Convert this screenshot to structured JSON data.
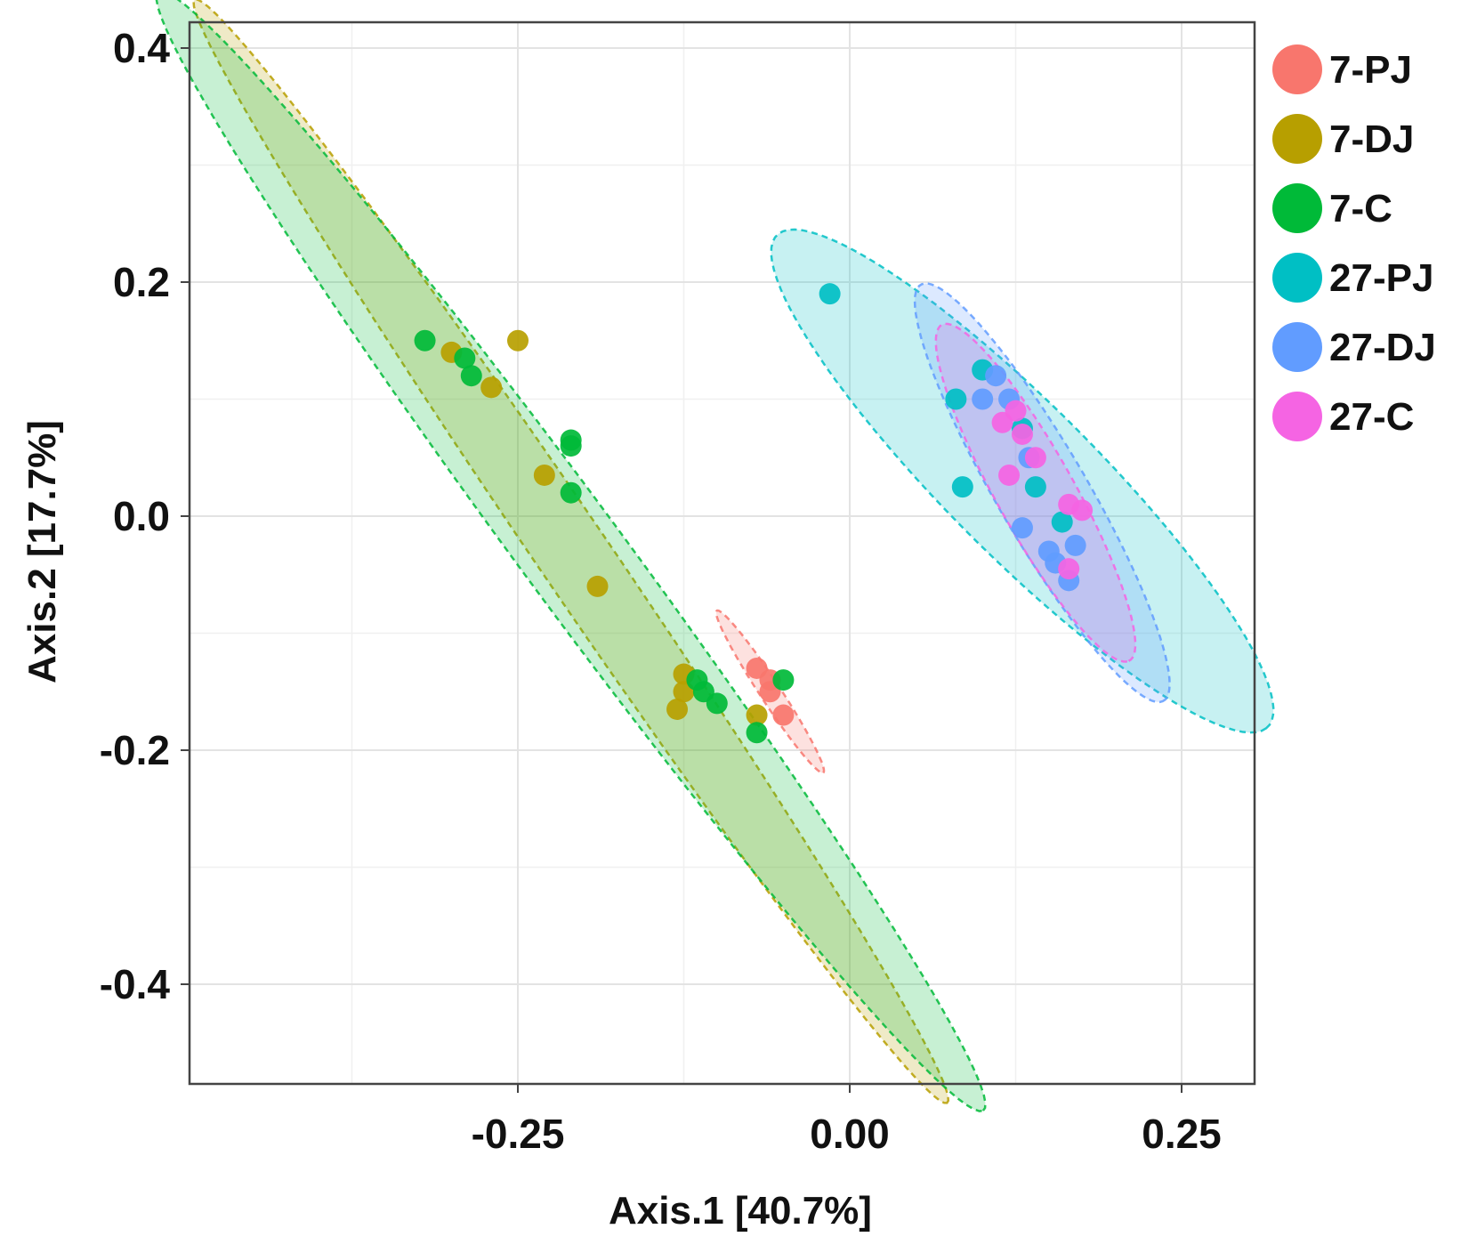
{
  "chart_data": {
    "type": "scatter",
    "title": "",
    "xlabel": "Axis.1 [40.7%]",
    "ylabel": "Axis.2 [17.7%]",
    "xlim": [
      -0.5,
      0.3
    ],
    "ylim": [
      -0.48,
      0.42
    ],
    "xticks": [
      -0.25,
      0.0,
      0.25
    ],
    "xtick_labels": [
      "-0.25",
      "0.00",
      "0.25"
    ],
    "yticks": [
      -0.4,
      -0.2,
      0.0,
      0.2,
      0.4
    ],
    "ytick_labels": [
      "-0.4",
      "-0.2",
      "0.0",
      "0.2",
      "0.4"
    ],
    "grid": true,
    "legend_position": "right",
    "series": [
      {
        "name": "7-PJ",
        "color": "#F8766D",
        "points": [
          [
            -0.07,
            -0.13
          ],
          [
            -0.06,
            -0.15
          ],
          [
            -0.05,
            -0.17
          ],
          [
            -0.06,
            -0.14
          ]
        ],
        "ellipse": {
          "cx": -0.06,
          "cy": -0.15,
          "semi_major": 0.08,
          "semi_minor": 0.008,
          "angle_deg": -60
        }
      },
      {
        "name": "7-DJ",
        "color": "#B79F00",
        "points": [
          [
            -0.3,
            0.14
          ],
          [
            -0.27,
            0.11
          ],
          [
            -0.25,
            0.15
          ],
          [
            -0.23,
            0.035
          ],
          [
            -0.19,
            -0.06
          ],
          [
            -0.125,
            -0.135
          ],
          [
            -0.13,
            -0.165
          ],
          [
            -0.125,
            -0.15
          ],
          [
            -0.07,
            -0.17
          ]
        ],
        "ellipse": {
          "cx": -0.21,
          "cy": -0.03,
          "semi_major": 0.55,
          "semi_minor": 0.028,
          "angle_deg": -59
        }
      },
      {
        "name": "7-C",
        "color": "#00BA38",
        "points": [
          [
            -0.32,
            0.15
          ],
          [
            -0.29,
            0.135
          ],
          [
            -0.285,
            0.12
          ],
          [
            -0.21,
            0.065
          ],
          [
            -0.21,
            0.06
          ],
          [
            -0.21,
            0.02
          ],
          [
            -0.11,
            -0.15
          ],
          [
            -0.1,
            -0.16
          ],
          [
            -0.115,
            -0.14
          ],
          [
            -0.07,
            -0.185
          ],
          [
            -0.05,
            -0.14
          ]
        ],
        "ellipse": {
          "cx": -0.21,
          "cy": -0.03,
          "semi_major": 0.57,
          "semi_minor": 0.04,
          "angle_deg": -57
        }
      },
      {
        "name": "27-PJ",
        "color": "#00BFC4",
        "points": [
          [
            -0.015,
            0.19
          ],
          [
            0.08,
            0.1
          ],
          [
            0.085,
            0.025
          ],
          [
            0.1,
            0.125
          ],
          [
            0.13,
            0.075
          ],
          [
            0.14,
            0.025
          ],
          [
            0.16,
            -0.005
          ]
        ],
        "ellipse": {
          "cx": 0.13,
          "cy": 0.03,
          "semi_major": 0.28,
          "semi_minor": 0.06,
          "angle_deg": -49
        }
      },
      {
        "name": "27-DJ",
        "color": "#619CFF",
        "points": [
          [
            0.1,
            0.1
          ],
          [
            0.11,
            0.12
          ],
          [
            0.12,
            0.1
          ],
          [
            0.135,
            0.05
          ],
          [
            0.13,
            -0.01
          ],
          [
            0.15,
            -0.03
          ],
          [
            0.155,
            -0.04
          ],
          [
            0.165,
            -0.055
          ],
          [
            0.17,
            -0.025
          ]
        ],
        "ellipse": {
          "cx": 0.145,
          "cy": 0.02,
          "semi_major": 0.2,
          "semi_minor": 0.035,
          "angle_deg": -63
        }
      },
      {
        "name": "27-C",
        "color": "#F564E3",
        "points": [
          [
            0.115,
            0.08
          ],
          [
            0.125,
            0.09
          ],
          [
            0.13,
            0.07
          ],
          [
            0.12,
            0.035
          ],
          [
            0.14,
            0.05
          ],
          [
            0.165,
            0.01
          ],
          [
            0.175,
            0.005
          ],
          [
            0.165,
            -0.045
          ]
        ],
        "ellipse": {
          "cx": 0.14,
          "cy": 0.02,
          "semi_major": 0.16,
          "semi_minor": 0.03,
          "angle_deg": -64
        }
      }
    ]
  }
}
